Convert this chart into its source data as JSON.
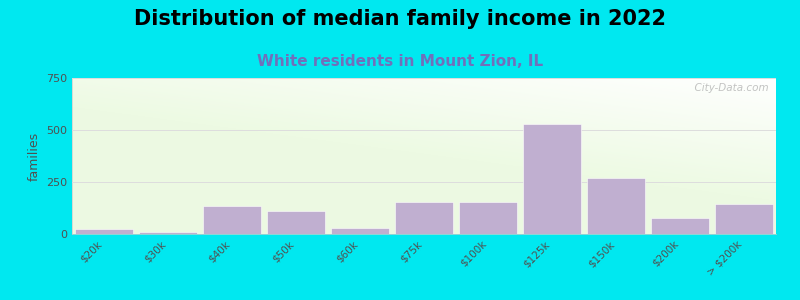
{
  "title": "Distribution of median family income in 2022",
  "subtitle": "White residents in Mount Zion, IL",
  "ylabel": "families",
  "categories": [
    "$20k",
    "$30k",
    "$40k",
    "$50k",
    "$60k",
    "$75k",
    "$100k",
    "$125k",
    "$150k",
    "$200k",
    "> $200k"
  ],
  "values": [
    22,
    8,
    135,
    110,
    28,
    155,
    155,
    530,
    270,
    75,
    145
  ],
  "bar_color": "#c0afd0",
  "background_outer": "#00e8f0",
  "ylim": [
    0,
    750
  ],
  "yticks": [
    0,
    250,
    500,
    750
  ],
  "title_fontsize": 15,
  "subtitle_fontsize": 11,
  "subtitle_color": "#7070bb",
  "watermark": "  City-Data.com"
}
